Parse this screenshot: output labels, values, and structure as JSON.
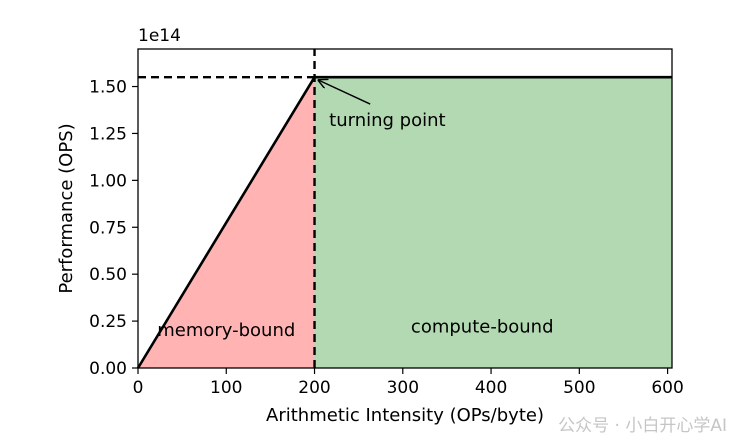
{
  "chart_data": {
    "type": "area",
    "xlabel": "Arithmetic Intensity (OPs/byte)",
    "ylabel": "Performance (OPS)",
    "y_offset_label": "1e14",
    "xlim": [
      0,
      605
    ],
    "ylim": [
      0,
      1.7
    ],
    "x_ticks": [
      0,
      100,
      200,
      300,
      400,
      500,
      600
    ],
    "x_tick_labels": [
      "0",
      "100",
      "200",
      "300",
      "400",
      "500",
      "600"
    ],
    "y_ticks": [
      0,
      0.25,
      0.5,
      0.75,
      1.0,
      1.25,
      1.5
    ],
    "y_tick_labels": [
      "0.00",
      "0.25",
      "0.50",
      "0.75",
      "1.00",
      "1.25",
      "1.50"
    ],
    "turning_point": {
      "x": 200,
      "y": 1.55
    },
    "series": [
      {
        "x": [
          0,
          200,
          605
        ],
        "y": [
          0,
          1.55,
          1.55
        ],
        "color": "#000000"
      }
    ],
    "regions": [
      {
        "label": "memory-bound",
        "x_range": [
          0,
          200
        ],
        "color": "#ffb3b3"
      },
      {
        "label": "compute-bound",
        "x_range": [
          200,
          605
        ],
        "color": "#b3d9b3"
      }
    ],
    "annotations": [
      {
        "text": "turning point",
        "point": {
          "x": 200,
          "y": 1.55
        },
        "text_at": {
          "x": 220,
          "y": 1.3
        }
      }
    ],
    "grid": false,
    "legend": "none"
  },
  "watermark": "公众号 · 小白开心学AI"
}
